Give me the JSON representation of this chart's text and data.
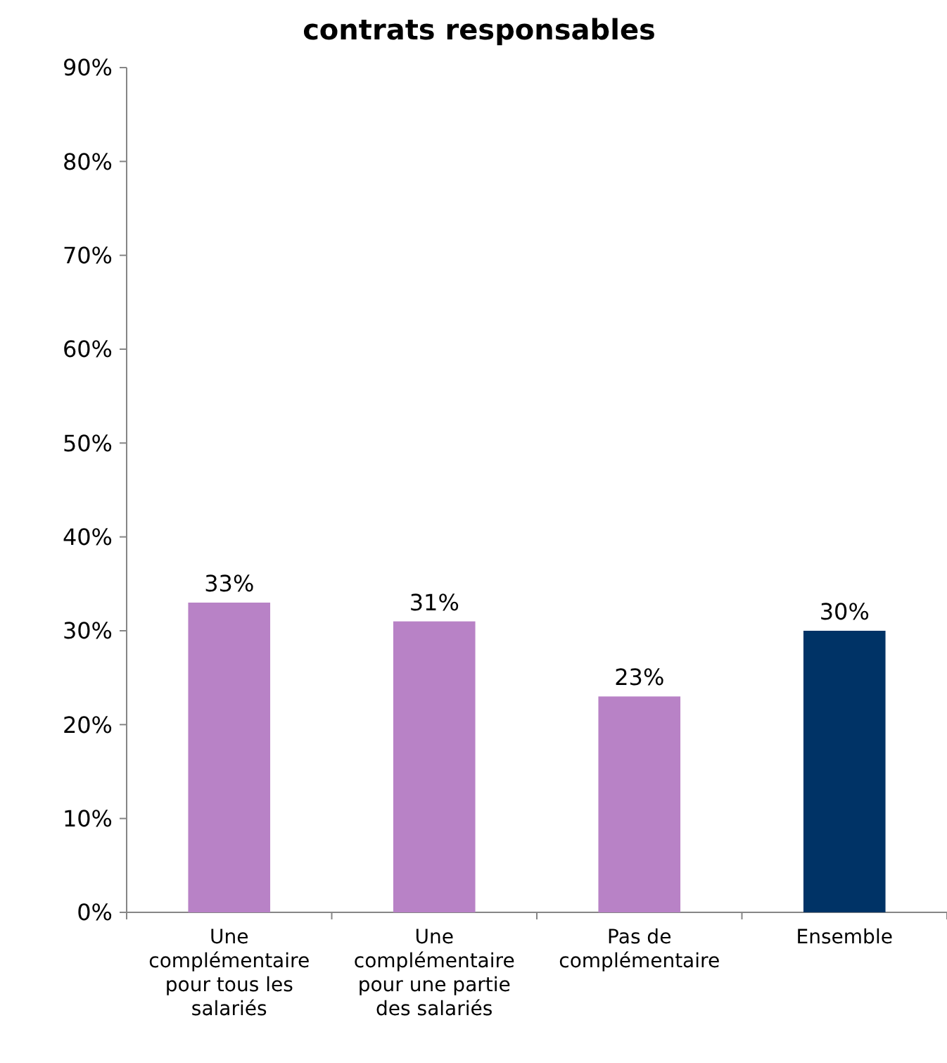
{
  "chart_data": {
    "type": "bar",
    "title": "contrats responsables",
    "categories": [
      "Une complémentaire pour tous les salariés",
      "Une complémentaire pour une partie des salariés",
      "Pas de complémentaire",
      "Ensemble"
    ],
    "values": [
      33,
      31,
      23,
      30
    ],
    "colors": [
      "#b882c6",
      "#b882c6",
      "#b882c6",
      "#003366"
    ],
    "ylim": [
      0,
      90
    ],
    "yticks": [
      {
        "value": 0,
        "label": "0%"
      },
      {
        "value": 10,
        "label": "10%"
      },
      {
        "value": 20,
        "label": "20%"
      },
      {
        "value": 30,
        "label": "30%"
      },
      {
        "value": 40,
        "label": "40%"
      },
      {
        "value": 50,
        "label": "50%"
      },
      {
        "value": 60,
        "label": "60%"
      },
      {
        "value": 70,
        "label": "70%"
      },
      {
        "value": 80,
        "label": "80%"
      },
      {
        "value": 90,
        "label": "90%"
      }
    ],
    "value_labels": [
      "33%",
      "31%",
      "23%",
      "30%"
    ]
  }
}
